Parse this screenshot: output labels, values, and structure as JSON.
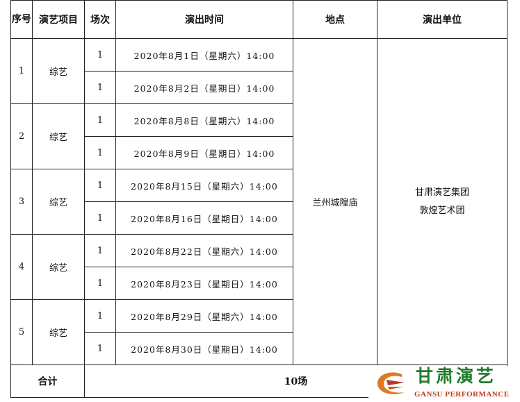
{
  "headers": {
    "no": "序号",
    "program": "演艺项目",
    "sessions": "场次",
    "time": "演出时间",
    "venue": "地点",
    "unit": "演出单位"
  },
  "groups": [
    {
      "no": "1",
      "program": "综艺",
      "rows": [
        {
          "count": "1",
          "time": "2020年8月1日（星期六）14:00"
        },
        {
          "count": "1",
          "time": "2020年8月2日（星期日）14:00"
        }
      ]
    },
    {
      "no": "2",
      "program": "综艺",
      "rows": [
        {
          "count": "1",
          "time": "2020年8月8日（星期六）14:00"
        },
        {
          "count": "1",
          "time": "2020年8月9日（星期日）14:00"
        }
      ]
    },
    {
      "no": "3",
      "program": "综艺",
      "rows": [
        {
          "count": "1",
          "time": "2020年8月15日（星期六）14:00"
        },
        {
          "count": "1",
          "time": "2020年8月16日（星期日）14:00"
        }
      ]
    },
    {
      "no": "4",
      "program": "综艺",
      "rows": [
        {
          "count": "1",
          "time": "2020年8月22日（星期六）14:00"
        },
        {
          "count": "1",
          "time": "2020年8月23日（星期日）14:00"
        }
      ]
    },
    {
      "no": "5",
      "program": "综艺",
      "rows": [
        {
          "count": "1",
          "time": "2020年8月29日（星期六）14:00"
        },
        {
          "count": "1",
          "time": "2020年8月30日（星期日）14:00"
        }
      ]
    }
  ],
  "venue": "兰州城隍庙",
  "unit_line1": "甘肃演艺集团",
  "unit_line2": "敦煌艺术团",
  "total_label": "合计",
  "total_value": "10场",
  "logo": {
    "cn": "甘肃演艺",
    "en": "GANSU PERFORMANCE"
  }
}
